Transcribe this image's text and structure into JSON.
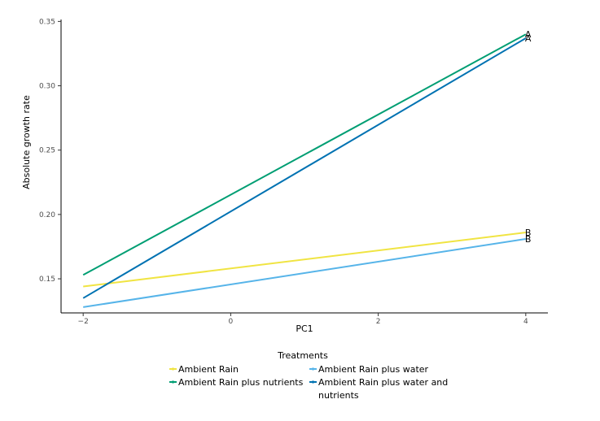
{
  "chart_data": {
    "type": "line",
    "title": "",
    "xlabel": "PC1",
    "ylabel": "Absolute growth rate",
    "xlim": [
      -2.3,
      4.3
    ],
    "ylim": [
      0.1235,
      0.3515
    ],
    "xticks": [
      -2,
      0,
      2,
      4
    ],
    "xtick_labels": [
      "−2",
      "0",
      "2",
      "4"
    ],
    "yticks": [
      0.15,
      0.2,
      0.25,
      0.3,
      0.35
    ],
    "ytick_labels": [
      "0.15",
      "0.20",
      "0.25",
      "0.30",
      "0.35"
    ],
    "grid": false,
    "series": [
      {
        "name": "Ambient Rain",
        "color": "#F0E442",
        "x": [
          -2,
          4
        ],
        "y": [
          0.144,
          0.186
        ],
        "end_label": "B"
      },
      {
        "name": "Ambient Rain plus nutrients",
        "color": "#009E73",
        "x": [
          -2,
          4
        ],
        "y": [
          0.153,
          0.34
        ],
        "end_label": "A"
      },
      {
        "name": "Ambient Rain plus water",
        "color": "#56B4E9",
        "x": [
          -2,
          4
        ],
        "y": [
          0.128,
          0.181
        ],
        "end_label": "B"
      },
      {
        "name": "Ambient Rain plus water and nutrients",
        "color": "#0072B2",
        "x": [
          -2,
          4
        ],
        "y": [
          0.135,
          0.337
        ],
        "end_label": "A"
      }
    ],
    "legend": {
      "title": "Treatments",
      "position": "bottom",
      "items": [
        {
          "label_lines": [
            "Ambient Rain"
          ],
          "color": "#F0E442"
        },
        {
          "label_lines": [
            "Ambient Rain plus nutrients"
          ],
          "color": "#009E73"
        },
        {
          "label_lines": [
            "Ambient Rain plus water"
          ],
          "color": "#56B4E9"
        },
        {
          "label_lines": [
            "Ambient Rain plus water and",
            "nutrients"
          ],
          "color": "#0072B2"
        }
      ]
    }
  }
}
